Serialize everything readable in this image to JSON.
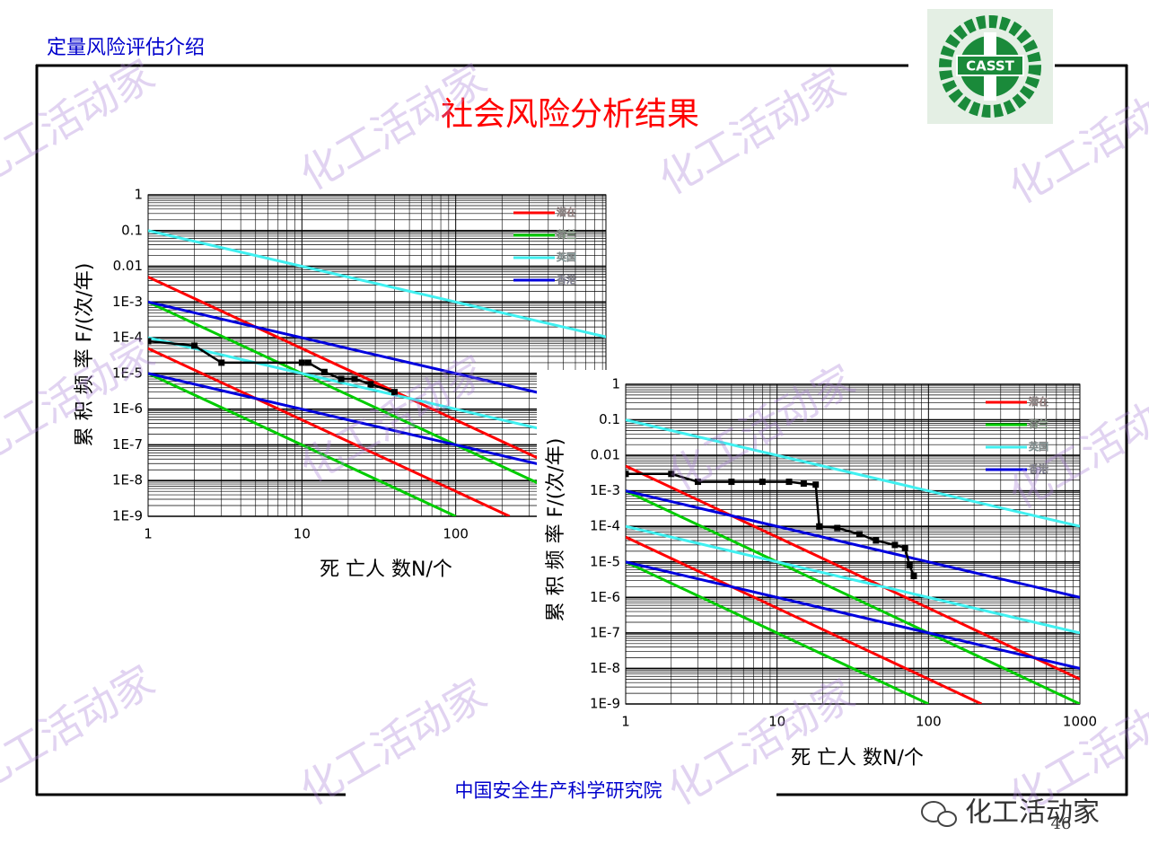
{
  "header": "定量风险评估介绍",
  "title": "社会风险分析结果",
  "footer": "中国安全生产科学研究院",
  "page_number": "46",
  "logo_text": "CASST",
  "watermark": "化工活动家",
  "chart_data": [
    {
      "type": "line",
      "x_label": "死 亡人 数N/个",
      "y_label": "累 积 频 率 F/(次/年)",
      "xscale": "log",
      "yscale": "log",
      "xlim": [
        1,
        1000
      ],
      "ylim": [
        1e-09,
        1
      ],
      "xticks": [
        1,
        10,
        100
      ],
      "yticks": [
        {
          "value": 1e-09,
          "label": "1E-9"
        },
        {
          "value": 1e-08,
          "label": "1E-8"
        },
        {
          "value": 1e-07,
          "label": "1E-7"
        },
        {
          "value": 1e-06,
          "label": "1E-6"
        },
        {
          "value": 1e-05,
          "label": "1E-5"
        },
        {
          "value": 0.0001,
          "label": "1E-4"
        },
        {
          "value": 0.001,
          "label": "1E-3"
        },
        0.01,
        0.1,
        1
      ],
      "grid": true,
      "minor_grid": true,
      "legend": "upper right",
      "series": [
        {
          "name": "潜在",
          "color": "#ff0000",
          "lines": [
            {
              "x": [
                1,
                1000
              ],
              "values": [
                0.005,
                5e-09
              ]
            },
            {
              "x": [
                1,
                224
              ],
              "values": [
                5e-05,
                1e-09
              ]
            }
          ]
        },
        {
          "name": "荷兰",
          "color": "#00cc00",
          "lines": [
            {
              "x": [
                1,
                1000
              ],
              "values": [
                0.001,
                1e-09
              ]
            },
            {
              "x": [
                1,
                100
              ],
              "values": [
                1e-05,
                1e-09
              ]
            }
          ]
        },
        {
          "name": "英国",
          "color": "#40f0f0",
          "lines": [
            {
              "x": [
                1,
                1000
              ],
              "values": [
                0.1,
                0.0001
              ]
            },
            {
              "x": [
                1,
                1000
              ],
              "values": [
                0.0001,
                1e-07
              ]
            }
          ]
        },
        {
          "name": "香港",
          "color": "#0000dd",
          "lines": [
            {
              "x": [
                1,
                1000
              ],
              "values": [
                0.001,
                1e-06
              ]
            },
            {
              "x": [
                1,
                1000
              ],
              "values": [
                1e-05,
                1e-08
              ]
            }
          ]
        }
      ],
      "points": {
        "color": "#000000",
        "x": [
          1,
          2,
          3,
          10,
          11,
          14,
          18,
          22,
          28,
          40
        ],
        "values": [
          8e-05,
          6e-05,
          2e-05,
          2e-05,
          2e-05,
          1.1e-05,
          7e-06,
          7e-06,
          5e-06,
          3e-06
        ]
      }
    },
    {
      "type": "line",
      "x_label": "死 亡人 数N/个",
      "y_label": "累 积 频 率 F/(次/年)",
      "xscale": "log",
      "yscale": "log",
      "xlim": [
        1,
        1000
      ],
      "ylim": [
        1e-09,
        1
      ],
      "xticks": [
        1,
        10,
        100,
        1000
      ],
      "yticks": [
        {
          "value": 1e-09,
          "label": "1E-9"
        },
        {
          "value": 1e-08,
          "label": "1E-8"
        },
        {
          "value": 1e-07,
          "label": "1E-7"
        },
        {
          "value": 1e-06,
          "label": "1E-6"
        },
        {
          "value": 1e-05,
          "label": "1E-5"
        },
        {
          "value": 0.0001,
          "label": "1E-4"
        },
        {
          "value": 0.001,
          "label": "1E-3"
        },
        0.01,
        0.1,
        1
      ],
      "grid": true,
      "minor_grid": true,
      "legend": "upper right",
      "series": [
        {
          "name": "潜在",
          "color": "#ff0000",
          "lines": [
            {
              "x": [
                1,
                1000
              ],
              "values": [
                0.005,
                5e-09
              ]
            },
            {
              "x": [
                1,
                224
              ],
              "values": [
                5e-05,
                1e-09
              ]
            }
          ]
        },
        {
          "name": "荷兰",
          "color": "#00cc00",
          "lines": [
            {
              "x": [
                1,
                1000
              ],
              "values": [
                0.001,
                1e-09
              ]
            },
            {
              "x": [
                1,
                100
              ],
              "values": [
                1e-05,
                1e-09
              ]
            }
          ]
        },
        {
          "name": "英国",
          "color": "#40f0f0",
          "lines": [
            {
              "x": [
                1,
                1000
              ],
              "values": [
                0.1,
                0.0001
              ]
            },
            {
              "x": [
                1,
                1000
              ],
              "values": [
                0.0001,
                1e-07
              ]
            }
          ]
        },
        {
          "name": "香港",
          "color": "#0000dd",
          "lines": [
            {
              "x": [
                1,
                1000
              ],
              "values": [
                0.001,
                1e-06
              ]
            },
            {
              "x": [
                1,
                1000
              ],
              "values": [
                1e-05,
                1e-08
              ]
            }
          ]
        }
      ],
      "points": {
        "color": "#000000",
        "x": [
          1,
          2,
          3,
          5,
          8,
          12,
          15,
          18,
          19,
          25,
          35,
          45,
          60,
          70,
          75,
          80
        ],
        "values": [
          0.003,
          0.003,
          0.0018,
          0.0018,
          0.0018,
          0.0018,
          0.0016,
          0.0015,
          0.0001,
          9e-05,
          6e-05,
          4e-05,
          3e-05,
          2.5e-05,
          8e-06,
          4e-06
        ]
      }
    }
  ]
}
